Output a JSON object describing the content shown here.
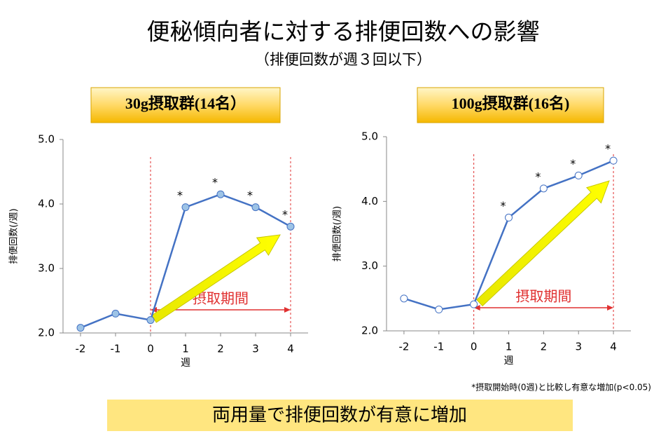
{
  "title": "便秘傾向者に対する排便回数への影響",
  "subtitle": "（排便回数が週３回以下）",
  "footnote": "*摂取開始時(0週)と比較し有意な増加(p<0.05)",
  "conclusion": "両用量で排便回数が有意に増加",
  "chart_data": [
    {
      "type": "line",
      "title": "30g摂取群(14名）",
      "x_label": "週",
      "y_label": "排便回数(/週)",
      "x": [
        -2,
        -1,
        0,
        1,
        2,
        3,
        4
      ],
      "series": [
        {
          "color": "#4472c4",
          "marker_fill": "#9dc3e6",
          "values": [
            2.08,
            2.3,
            2.2,
            3.95,
            4.15,
            3.95,
            3.65
          ]
        }
      ],
      "xlim": [
        -2.5,
        4.5
      ],
      "xticks": [
        -2,
        -1,
        0,
        1,
        2,
        3,
        4
      ],
      "ylim": [
        2,
        5
      ],
      "yticks": [
        {
          "value": 2,
          "label": "2.0"
        },
        {
          "value": 3,
          "label": "3.0"
        },
        {
          "value": 4,
          "label": "4.0"
        },
        {
          "value": 5,
          "label": "5.0"
        }
      ],
      "significance": {
        "label": "*",
        "x": [
          1,
          2,
          3,
          4
        ]
      },
      "period": {
        "label": "摂取期間",
        "x": [
          0,
          4
        ],
        "color": "#e03030"
      }
    },
    {
      "type": "line",
      "title": "100g摂取群(16名)",
      "x_label": "週",
      "y_label": "排便回数(/週)",
      "x": [
        -2,
        -1,
        0,
        1,
        2,
        3,
        4
      ],
      "series": [
        {
          "color": "#4472c4",
          "marker_fill": "#ffffff",
          "values": [
            2.5,
            2.33,
            2.41,
            3.75,
            4.2,
            4.4,
            4.63
          ]
        }
      ],
      "xlim": [
        -2.5,
        4.5
      ],
      "xticks": [
        -2,
        -1,
        0,
        1,
        2,
        3,
        4
      ],
      "ylim": [
        2,
        5
      ],
      "yticks": [
        {
          "value": 2,
          "label": "2.0"
        },
        {
          "value": 3,
          "label": "3.0"
        },
        {
          "value": 4,
          "label": "4.0"
        },
        {
          "value": 5,
          "label": "5.0"
        }
      ],
      "significance": {
        "label": "*",
        "x": [
          1,
          2,
          3,
          4
        ]
      },
      "period": {
        "label": "摂取期間",
        "x": [
          0,
          4
        ],
        "color": "#e03030"
      }
    }
  ]
}
